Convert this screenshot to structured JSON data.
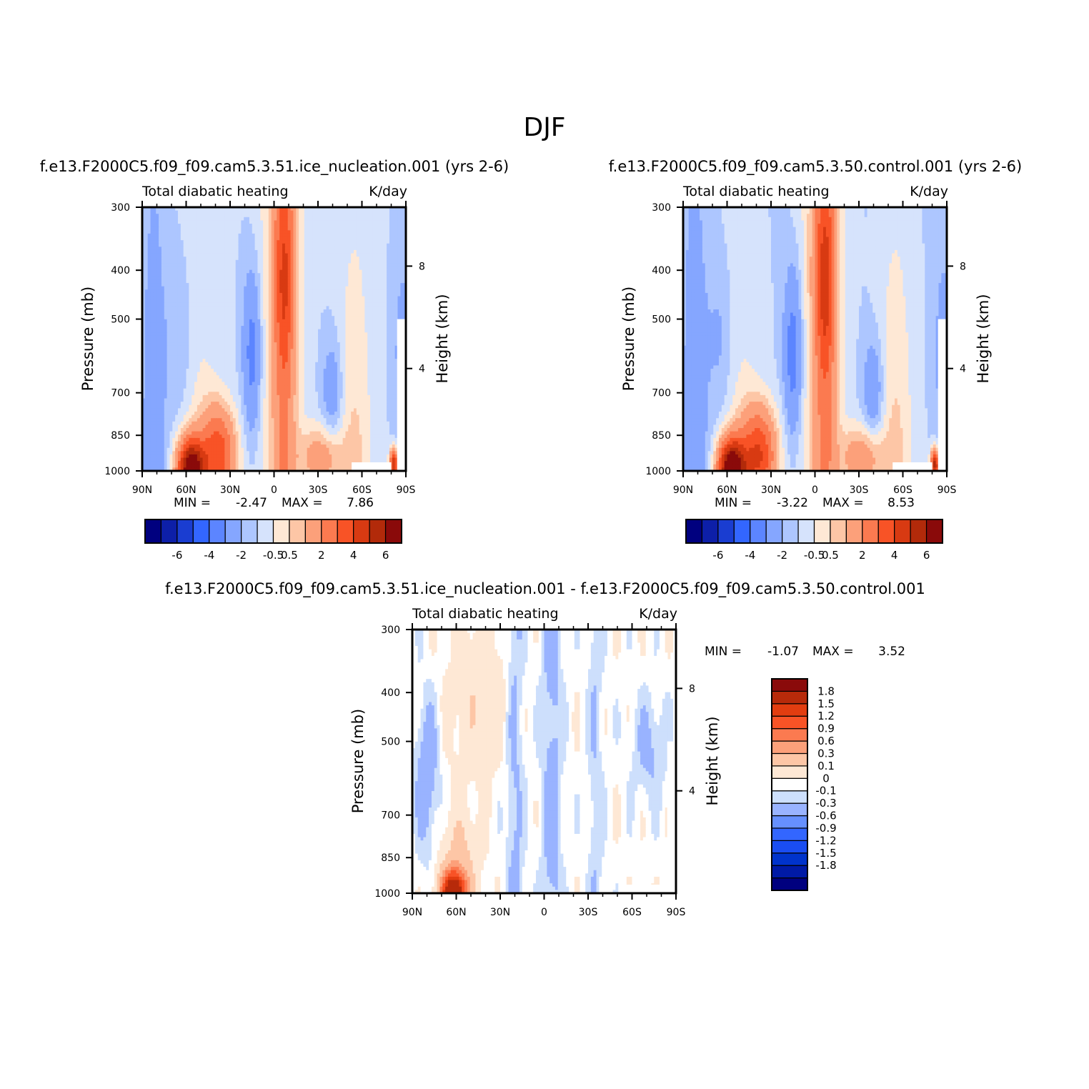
{
  "figure": {
    "title": "DJF"
  },
  "colors": {
    "diff_palette": [
      "#00007f",
      "#001aa6",
      "#0033cc",
      "#1a4df2",
      "#3366ff",
      "#6690ff",
      "#99b3ff",
      "#cddffc",
      "#ffffff",
      "#fee8d5",
      "#fdc6a6",
      "#fca07a",
      "#fb7a50",
      "#f85326",
      "#e23d10",
      "#b72a0a",
      "#8a0a0a"
    ],
    "full_palette": [
      "#00007f",
      "#0d1fa8",
      "#1a3dd1",
      "#3366ff",
      "#5c85ff",
      "#85a6ff",
      "#adc6ff",
      "#d6e3fc",
      "#fee8d5",
      "#fdc6a6",
      "#fca07a",
      "#fb7a50",
      "#f85326",
      "#d83a12",
      "#b22a0a",
      "#8a0a0a"
    ]
  },
  "chart_data": [
    {
      "type": "heatmap",
      "name": "ice_nucleation",
      "case_title": "f.e13.F2000C5.f09_f09.cam5.3.51.ice_nucleation.001  (yrs 2-6)",
      "left_string": "Total diabatic heating",
      "right_string": "K/day",
      "ylabel": "Pressure (mb)",
      "ylabel_right": "Height (km)",
      "x_ticks": [
        "90N",
        "60N",
        "30N",
        "0",
        "30S",
        "60S",
        "90S"
      ],
      "x_range": [
        90,
        -90
      ],
      "y_ticks": [
        "300",
        "400",
        "500",
        "700",
        "850",
        "1000"
      ],
      "y_range": [
        300,
        1000
      ],
      "y_ticks_right": [
        "8",
        "4"
      ],
      "min_label": "MIN =",
      "min_value": "-2.47",
      "max_label": "MAX =",
      "max_value": "7.86",
      "levels": [
        -6,
        -5,
        -4,
        -3,
        -2,
        -1,
        -0.5,
        0,
        0.5,
        1,
        2,
        3,
        4,
        5,
        6
      ],
      "colorbar_labels": [
        "-6",
        "-4",
        "-2",
        "-0.5",
        "0.5",
        "2",
        "4",
        "6"
      ],
      "field_scale": 1.0
    },
    {
      "type": "heatmap",
      "name": "control",
      "case_title": "f.e13.F2000C5.f09_f09.cam5.3.50.control.001  (yrs 2-6)",
      "left_string": "Total diabatic heating",
      "right_string": "K/day",
      "ylabel": "Pressure (mb)",
      "ylabel_right": "Height (km)",
      "x_ticks": [
        "90N",
        "60N",
        "30N",
        "0",
        "30S",
        "60S",
        "90S"
      ],
      "x_range": [
        90,
        -90
      ],
      "y_ticks": [
        "300",
        "400",
        "500",
        "700",
        "850",
        "1000"
      ],
      "y_range": [
        300,
        1000
      ],
      "y_ticks_right": [
        "8",
        "4"
      ],
      "min_label": "MIN =",
      "min_value": "-3.22",
      "max_label": "MAX =",
      "max_value": "8.53",
      "levels": [
        -6,
        -5,
        -4,
        -3,
        -2,
        -1,
        -0.5,
        0,
        0.5,
        1,
        2,
        3,
        4,
        5,
        6
      ],
      "colorbar_labels": [
        "-6",
        "-4",
        "-2",
        "-0.5",
        "0.5",
        "2",
        "4",
        "6"
      ],
      "field_scale": 1.08
    },
    {
      "type": "heatmap",
      "name": "difference",
      "case_title": "f.e13.F2000C5.f09_f09.cam5.3.51.ice_nucleation.001  -  f.e13.F2000C5.f09_f09.cam5.3.50.control.001",
      "left_string": "Total diabatic heating",
      "right_string": "K/day",
      "ylabel": "Pressure (mb)",
      "ylabel_right": "Height (km)",
      "x_ticks": [
        "90N",
        "60N",
        "30N",
        "0",
        "30S",
        "60S",
        "90S"
      ],
      "x_range": [
        90,
        -90
      ],
      "y_ticks": [
        "300",
        "400",
        "500",
        "700",
        "850",
        "1000"
      ],
      "y_range": [
        300,
        1000
      ],
      "y_ticks_right": [
        "8",
        "4"
      ],
      "min_label": "MIN =",
      "min_value": "-1.07",
      "max_label": "MAX =",
      "max_value": "3.52",
      "levels": [
        -1.8,
        -1.5,
        -1.2,
        -0.9,
        -0.6,
        -0.3,
        -0.1,
        0,
        0.1,
        0.3,
        0.6,
        0.9,
        1.2,
        1.5,
        1.8
      ],
      "colorbar_labels": [
        "1.8",
        "1.5",
        "1.2",
        "0.9",
        "0.6",
        "0.3",
        "0.1",
        "0",
        "-0.1",
        "-0.3",
        "-0.6",
        "-0.9",
        "-1.2",
        "-1.5",
        "-1.8"
      ]
    }
  ]
}
